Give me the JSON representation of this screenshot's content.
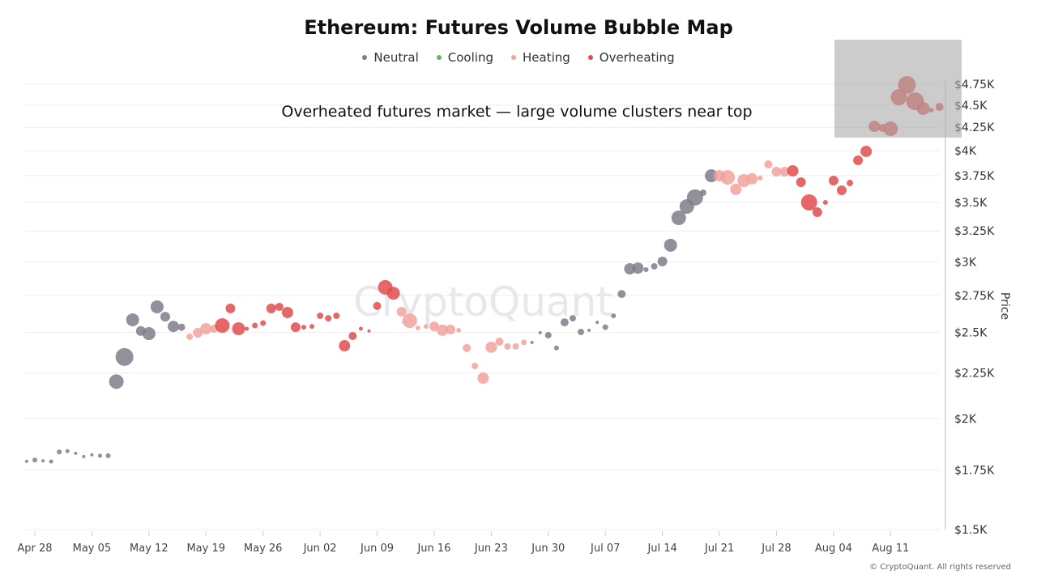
{
  "chart_data": {
    "type": "scatter",
    "title": "Ethereum: Futures Volume Bubble Map",
    "annotation": "Overheated futures market — large volume clusters near top",
    "ylabel": "Price",
    "xlabel": "",
    "y_scale": "log",
    "ylim": [
      1500,
      4900
    ],
    "grid": true,
    "legend_position": "top",
    "legend": [
      {
        "name": "Neutral",
        "color": "#7f7c89"
      },
      {
        "name": "Cooling",
        "color": "#5cb85c"
      },
      {
        "name": "Heating",
        "color": "#f2a29b"
      },
      {
        "name": "Overheating",
        "color": "#e24c4c"
      }
    ],
    "x_ticks": [
      "Apr 28",
      "May 05",
      "May 12",
      "May 19",
      "May 26",
      "Jun 02",
      "Jun 09",
      "Jun 16",
      "Jun 23",
      "Jun 30",
      "Jul 07",
      "Jul 14",
      "Jul 21",
      "Jul 28",
      "Aug 04",
      "Aug 11"
    ],
    "y_ticks": [
      {
        "value": 1500,
        "label": "$1.5K"
      },
      {
        "value": 1750,
        "label": "$1.75K"
      },
      {
        "value": 2000,
        "label": "$2K"
      },
      {
        "value": 2250,
        "label": "$2.25K"
      },
      {
        "value": 2500,
        "label": "$2.5K"
      },
      {
        "value": 2750,
        "label": "$2.75K"
      },
      {
        "value": 3000,
        "label": "$3K"
      },
      {
        "value": 3250,
        "label": "$3.25K"
      },
      {
        "value": 3500,
        "label": "$3.5K"
      },
      {
        "value": 3750,
        "label": "$3.75K"
      },
      {
        "value": 4000,
        "label": "$4K"
      },
      {
        "value": 4250,
        "label": "$4.25K"
      },
      {
        "value": 4500,
        "label": "$4.5K"
      },
      {
        "value": 4750,
        "label": "$4.75K"
      }
    ],
    "highlight_region": {
      "x_from": "08-04",
      "x_to": "08-19",
      "y_from": 4200,
      "y_to": 5600
    },
    "points_fields": [
      "date",
      "price",
      "relative_volume",
      "status"
    ],
    "points": [
      [
        "04-27",
        1790,
        2,
        "Neutral"
      ],
      [
        "04-28",
        1796,
        3,
        "Neutral"
      ],
      [
        "04-29",
        1792,
        2,
        "Neutral"
      ],
      [
        "04-30",
        1789,
        2.5,
        "Neutral"
      ],
      [
        "05-01",
        1834,
        3,
        "Neutral"
      ],
      [
        "05-02",
        1838,
        2.5,
        "Neutral"
      ],
      [
        "05-03",
        1827,
        2,
        "Neutral"
      ],
      [
        "05-04",
        1812,
        2,
        "Neutral"
      ],
      [
        "05-05",
        1820,
        2,
        "Neutral"
      ],
      [
        "05-06",
        1816,
        2.5,
        "Neutral"
      ],
      [
        "05-07",
        1816,
        3,
        "Neutral"
      ],
      [
        "05-08",
        2200,
        9,
        "Neutral"
      ],
      [
        "05-09",
        2345,
        11,
        "Neutral"
      ],
      [
        "05-10",
        2582,
        8,
        "Neutral"
      ],
      [
        "05-11",
        2508,
        6,
        "Neutral"
      ],
      [
        "05-12",
        2491,
        8,
        "Neutral"
      ],
      [
        "05-13",
        2670,
        8,
        "Neutral"
      ],
      [
        "05-14",
        2603,
        6,
        "Neutral"
      ],
      [
        "05-15",
        2538,
        7,
        "Neutral"
      ],
      [
        "05-16",
        2533,
        4.5,
        "Neutral"
      ],
      [
        "05-17",
        2471,
        4,
        "Heating"
      ],
      [
        "05-18",
        2497,
        6,
        "Heating"
      ],
      [
        "05-19",
        2523,
        7,
        "Heating"
      ],
      [
        "05-20",
        2523,
        5,
        "Heating"
      ],
      [
        "05-21",
        2544,
        9,
        "Overheating"
      ],
      [
        "05-22",
        2659,
        6,
        "Overheating"
      ],
      [
        "05-23",
        2523,
        8,
        "Overheating"
      ],
      [
        "05-24",
        2523,
        2.5,
        "Overheating"
      ],
      [
        "05-25",
        2544,
        3.5,
        "Overheating"
      ],
      [
        "05-26",
        2560,
        3.5,
        "Overheating"
      ],
      [
        "05-27",
        2659,
        6,
        "Overheating"
      ],
      [
        "05-28",
        2670,
        5,
        "Overheating"
      ],
      [
        "05-29",
        2631,
        7,
        "Overheating"
      ],
      [
        "05-30",
        2533,
        6,
        "Overheating"
      ],
      [
        "05-31",
        2533,
        3,
        "Overheating"
      ],
      [
        "06-01",
        2538,
        3,
        "Overheating"
      ],
      [
        "06-02",
        2609,
        4,
        "Overheating"
      ],
      [
        "06-03",
        2592,
        4,
        "Overheating"
      ],
      [
        "06-04",
        2609,
        4,
        "Overheating"
      ],
      [
        "06-05",
        2414,
        7,
        "Overheating"
      ],
      [
        "06-06",
        2476,
        5,
        "Overheating"
      ],
      [
        "06-07",
        2523,
        2.5,
        "Overheating"
      ],
      [
        "06-08",
        2508,
        2,
        "Overheating"
      ],
      [
        "06-09",
        2676,
        5,
        "Overheating"
      ],
      [
        "06-10",
        2808,
        9,
        "Overheating"
      ],
      [
        "06-11",
        2766,
        8,
        "Overheating"
      ],
      [
        "06-12",
        2637,
        6,
        "Heating"
      ],
      [
        "06-13",
        2576,
        9,
        "Heating"
      ],
      [
        "06-14",
        2528,
        3,
        "Heating"
      ],
      [
        "06-15",
        2538,
        3,
        "Heating"
      ],
      [
        "06-16",
        2538,
        6,
        "Heating"
      ],
      [
        "06-17",
        2513,
        7,
        "Heating"
      ],
      [
        "06-18",
        2518,
        6,
        "Heating"
      ],
      [
        "06-19",
        2513,
        3,
        "Heating"
      ],
      [
        "06-20",
        2400,
        5,
        "Heating"
      ],
      [
        "06-21",
        2291,
        4,
        "Heating"
      ],
      [
        "06-22",
        2220,
        7,
        "Heating"
      ],
      [
        "06-23",
        2405,
        7,
        "Heating"
      ],
      [
        "06-24",
        2440,
        5,
        "Heating"
      ],
      [
        "06-25",
        2410,
        4,
        "Heating"
      ],
      [
        "06-26",
        2410,
        4,
        "Heating"
      ],
      [
        "06-27",
        2435,
        3.5,
        "Heating"
      ],
      [
        "06-28",
        2435,
        2,
        "Neutral"
      ],
      [
        "06-29",
        2497,
        2,
        "Neutral"
      ],
      [
        "06-30",
        2481,
        4,
        "Neutral"
      ],
      [
        "07-01",
        2400,
        3,
        "Neutral"
      ],
      [
        "07-02",
        2565,
        5,
        "Neutral"
      ],
      [
        "07-03",
        2592,
        4,
        "Neutral"
      ],
      [
        "07-04",
        2502,
        4,
        "Neutral"
      ],
      [
        "07-05",
        2513,
        2,
        "Neutral"
      ],
      [
        "07-06",
        2565,
        2,
        "Neutral"
      ],
      [
        "07-07",
        2533,
        3.5,
        "Neutral"
      ],
      [
        "07-08",
        2609,
        3,
        "Neutral"
      ],
      [
        "07-09",
        2760,
        5,
        "Neutral"
      ],
      [
        "07-10",
        2946,
        7,
        "Neutral"
      ],
      [
        "07-11",
        2952,
        7,
        "Neutral"
      ],
      [
        "07-12",
        2940,
        3,
        "Neutral"
      ],
      [
        "07-13",
        2965,
        4,
        "Neutral"
      ],
      [
        "07-14",
        3003,
        6,
        "Neutral"
      ],
      [
        "07-15",
        3132,
        8,
        "Neutral"
      ],
      [
        "07-16",
        3362,
        9,
        "Neutral"
      ],
      [
        "07-17",
        3462,
        9,
        "Neutral"
      ],
      [
        "07-18",
        3544,
        10,
        "Neutral"
      ],
      [
        "07-19",
        3588,
        4,
        "Neutral"
      ],
      [
        "07-20",
        3749,
        8,
        "Neutral"
      ],
      [
        "07-21",
        3749,
        7,
        "Heating"
      ],
      [
        "07-22",
        3733,
        9,
        "Heating"
      ],
      [
        "07-23",
        3619,
        7,
        "Heating"
      ],
      [
        "07-24",
        3703,
        8,
        "Heating"
      ],
      [
        "07-25",
        3719,
        7,
        "Heating"
      ],
      [
        "07-26",
        3727,
        3,
        "Heating"
      ],
      [
        "07-27",
        3861,
        5,
        "Heating"
      ],
      [
        "07-28",
        3789,
        6,
        "Heating"
      ],
      [
        "07-29",
        3789,
        6,
        "Heating"
      ],
      [
        "07-30",
        3797,
        7,
        "Overheating"
      ],
      [
        "07-31",
        3687,
        6,
        "Overheating"
      ],
      [
        "08-01",
        3499,
        10,
        "Overheating"
      ],
      [
        "08-02",
        3412,
        6,
        "Overheating"
      ],
      [
        "08-03",
        3499,
        3,
        "Overheating"
      ],
      [
        "08-04",
        3703,
        6,
        "Overheating"
      ],
      [
        "08-05",
        3611,
        6,
        "Overheating"
      ],
      [
        "08-06",
        3679,
        4,
        "Overheating"
      ],
      [
        "08-07",
        3902,
        6,
        "Overheating"
      ],
      [
        "08-08",
        3993,
        7,
        "Overheating"
      ],
      [
        "08-09",
        4261,
        7,
        "Overheating"
      ],
      [
        "08-10",
        4243,
        5,
        "Overheating"
      ],
      [
        "08-11",
        4234,
        9,
        "Overheating"
      ],
      [
        "08-12",
        4594,
        10,
        "Overheating"
      ],
      [
        "08-13",
        4742,
        11,
        "Overheating"
      ],
      [
        "08-14",
        4547,
        11,
        "Overheating"
      ],
      [
        "08-15",
        4462,
        8,
        "Overheating"
      ],
      [
        "08-16",
        4443,
        3,
        "Overheating"
      ],
      [
        "08-17",
        4480,
        5,
        "Overheating"
      ]
    ]
  },
  "watermark": "CryptoQuant",
  "footer": "© CryptoQuant. All rights reserved"
}
